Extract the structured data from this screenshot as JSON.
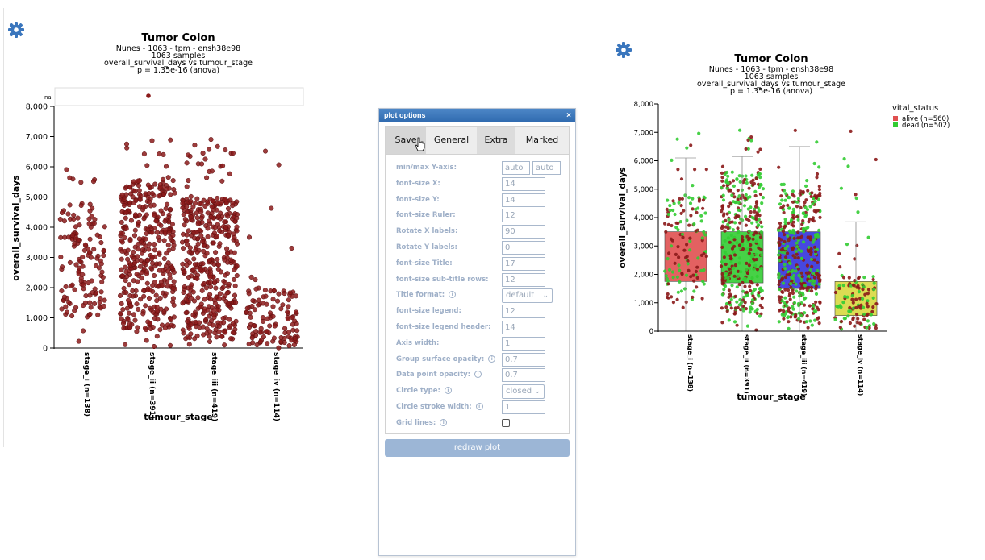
{
  "colors": {
    "point": "#8b1a1a",
    "alive": "#e05050",
    "dead": "#33cc33",
    "stage_iii_box": "#3333dd",
    "stage_iv_box": "#d8d840"
  },
  "left_plot": {
    "title": "Tumor Colon",
    "subtitle": [
      "Nunes - 1063 - tpm - ensh38e98",
      "1063 samples",
      "overall_survival_days vs tumour_stage",
      "p = 1.35e-16 (anova)"
    ],
    "na_label": "na",
    "ylabel": "overall_survival_days",
    "xlabel": "tumour_stage",
    "y_ticks": [
      "0",
      "1,000",
      "2,000",
      "3,000",
      "4,000",
      "5,000",
      "6,000",
      "7,000",
      "8,000"
    ]
  },
  "right_plot": {
    "title": "Tumor Colon",
    "subtitle": [
      "Nunes - 1063 - tpm - ensh38e98",
      "1063 samples",
      "overall_survival_days vs tumour_stage",
      "p = 1.35e-16 (anova)"
    ],
    "ylabel": "overall_survival_days",
    "xlabel": "tumour_stage",
    "y_ticks": [
      "0",
      "1,000",
      "2,000",
      "3,000",
      "4,000",
      "5,000",
      "6,000",
      "7,000",
      "8,000"
    ],
    "legend_title": "vital_status",
    "legend": [
      "alive (n=560)",
      "dead (n=502)"
    ]
  },
  "chart_data": [
    {
      "type": "scatter",
      "title": "Tumor Colon",
      "xlabel": "tumour_stage",
      "ylabel": "overall_survival_days",
      "ylim": [
        0,
        8000
      ],
      "categories": [
        "stage_i (n=138)",
        "stage_ii (n=391)",
        "stage_iii (n=419)",
        "stage_iv (n=114)"
      ],
      "counts": [
        138,
        391,
        419,
        114
      ],
      "range_per_category": [
        [
          0,
          7000
        ],
        [
          0,
          7150
        ],
        [
          0,
          7100
        ],
        [
          0,
          7150
        ]
      ],
      "dense_region_per_category": [
        [
          1000,
          4800
        ],
        [
          600,
          5600
        ],
        [
          300,
          5000
        ],
        [
          0,
          2000
        ]
      ],
      "grid": false,
      "legend": "none"
    },
    {
      "type": "box",
      "title": "Tumor Colon",
      "xlabel": "tumour_stage",
      "ylabel": "overall_survival_days",
      "ylim": [
        0,
        8000
      ],
      "categories": [
        "stage_i (n=138)",
        "stage_ii (n=391)",
        "stage_iii (n=419)",
        "stage_iv (n=114)"
      ],
      "box_q1": [
        1750,
        1700,
        1500,
        550
      ],
      "box_q3": [
        3500,
        3500,
        3500,
        1750
      ],
      "whisker_high": [
        6100,
        6150,
        6500,
        3850
      ],
      "legend_entries": [
        "alive (n=560)",
        "dead (n=502)"
      ],
      "legend": "top-right",
      "grid": false
    }
  ],
  "panel": {
    "title": "plot options",
    "close": "×",
    "tabs": [
      "Save",
      "General",
      "Extra",
      "Marked"
    ],
    "rows": [
      {
        "label": "min/max Y-axis:",
        "info": false,
        "kind": "pair",
        "values": [
          "auto",
          "auto"
        ]
      },
      {
        "label": "font-size X:",
        "info": false,
        "kind": "input",
        "value": "14"
      },
      {
        "label": "font-size Y:",
        "info": false,
        "kind": "input",
        "value": "14"
      },
      {
        "label": "font-size Ruler:",
        "info": false,
        "kind": "input",
        "value": "12"
      },
      {
        "label": "Rotate X labels:",
        "info": false,
        "kind": "input",
        "value": "90"
      },
      {
        "label": "Rotate Y labels:",
        "info": false,
        "kind": "input",
        "value": "0"
      },
      {
        "label": "font-size Title:",
        "info": false,
        "kind": "input",
        "value": "17"
      },
      {
        "label": "font-size sub-title rows:",
        "info": false,
        "kind": "input",
        "value": "12"
      },
      {
        "label": "Title format:",
        "info": true,
        "kind": "select",
        "value": "default"
      },
      {
        "label": "font-size legend:",
        "info": false,
        "kind": "input",
        "value": "12"
      },
      {
        "label": "font-size legend header:",
        "info": false,
        "kind": "input",
        "value": "14"
      },
      {
        "label": "Axis width:",
        "info": false,
        "kind": "input",
        "value": "1"
      },
      {
        "label": "Group surface opacity:",
        "info": true,
        "kind": "input",
        "value": "0.7"
      },
      {
        "label": "Data point opacity:",
        "info": true,
        "kind": "input",
        "value": "0.7"
      },
      {
        "label": "Circle type:",
        "info": true,
        "kind": "select",
        "value": "closed"
      },
      {
        "label": "Circle stroke width:",
        "info": true,
        "kind": "input",
        "value": "1"
      },
      {
        "label": "Grid lines:",
        "info": true,
        "kind": "checkbox",
        "value": ""
      }
    ],
    "redraw_label": "redraw plot"
  }
}
